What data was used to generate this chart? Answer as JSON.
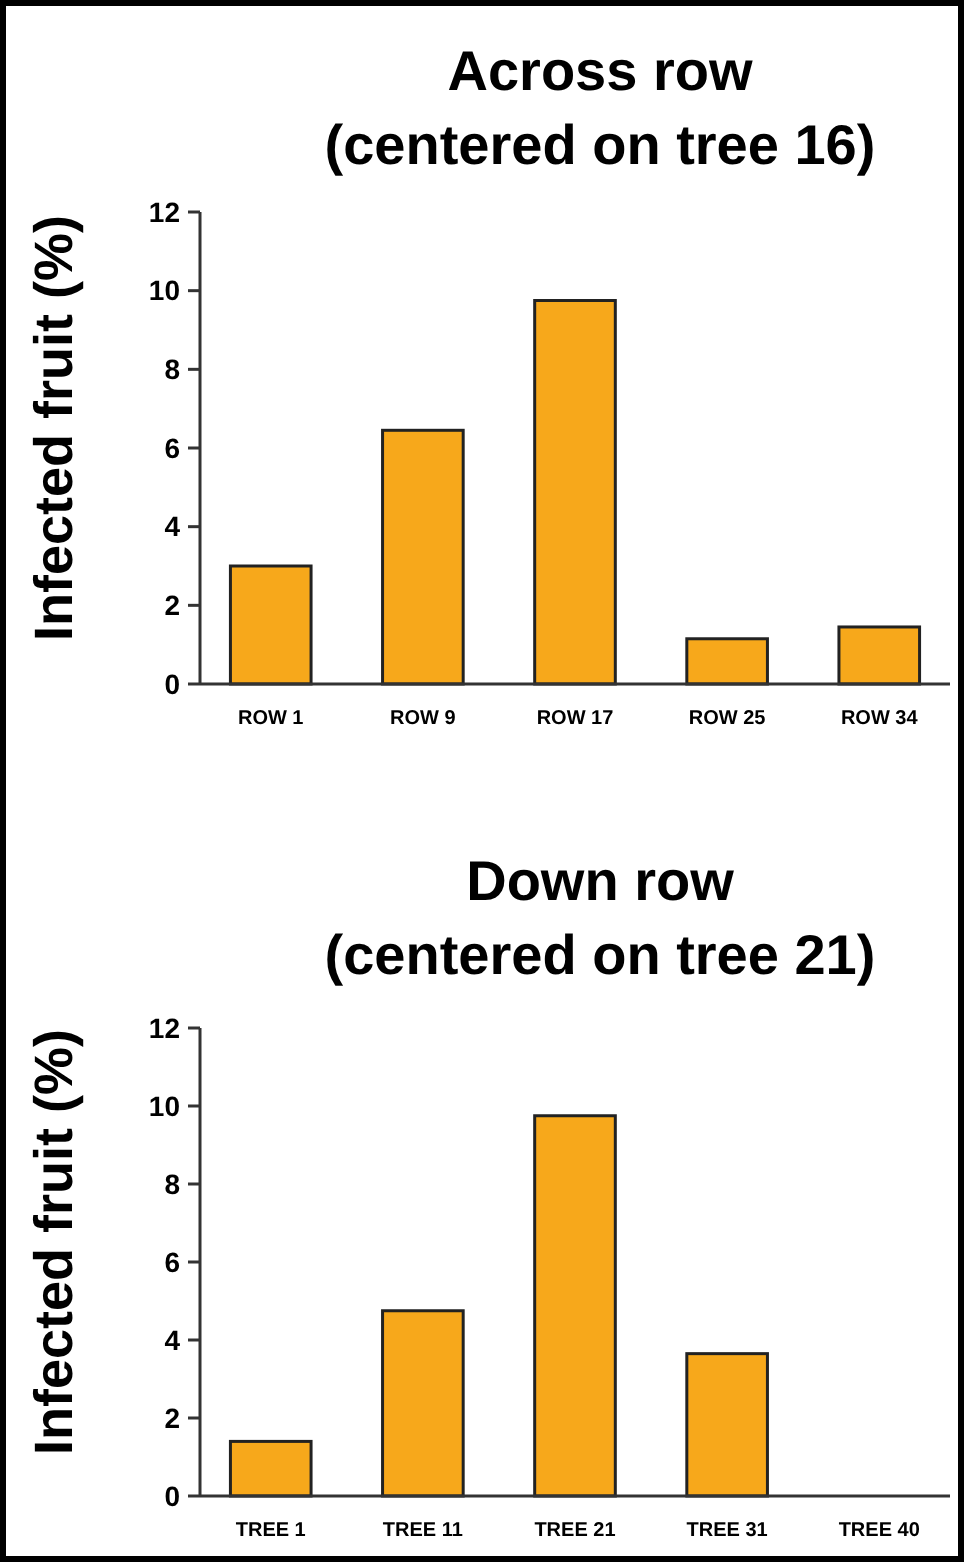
{
  "chart_data": [
    {
      "type": "bar",
      "title": "Across row",
      "subtitle": "(centered on tree 16)",
      "ylabel": "Infected fruit (%)",
      "categories": [
        "ROW 1",
        "ROW 9",
        "ROW 17",
        "ROW 25",
        "ROW 34"
      ],
      "values": [
        3.0,
        6.45,
        9.75,
        1.15,
        1.45
      ],
      "color": "#f7a81b",
      "ylim": [
        0,
        12
      ],
      "yticks": [
        0,
        2,
        4,
        6,
        8,
        10,
        12
      ]
    },
    {
      "type": "bar",
      "title": "Down row",
      "subtitle": "(centered on tree 21)",
      "ylabel": "Infected fruit (%)",
      "categories": [
        "TREE 1",
        "TREE 11",
        "TREE 21",
        "TREE 31",
        "TREE 40"
      ],
      "values": [
        1.4,
        4.75,
        9.75,
        3.65,
        0
      ],
      "color": "#f7a81b",
      "ylim": [
        0,
        12
      ],
      "yticks": [
        0,
        2,
        4,
        6,
        8,
        10,
        12
      ]
    }
  ]
}
